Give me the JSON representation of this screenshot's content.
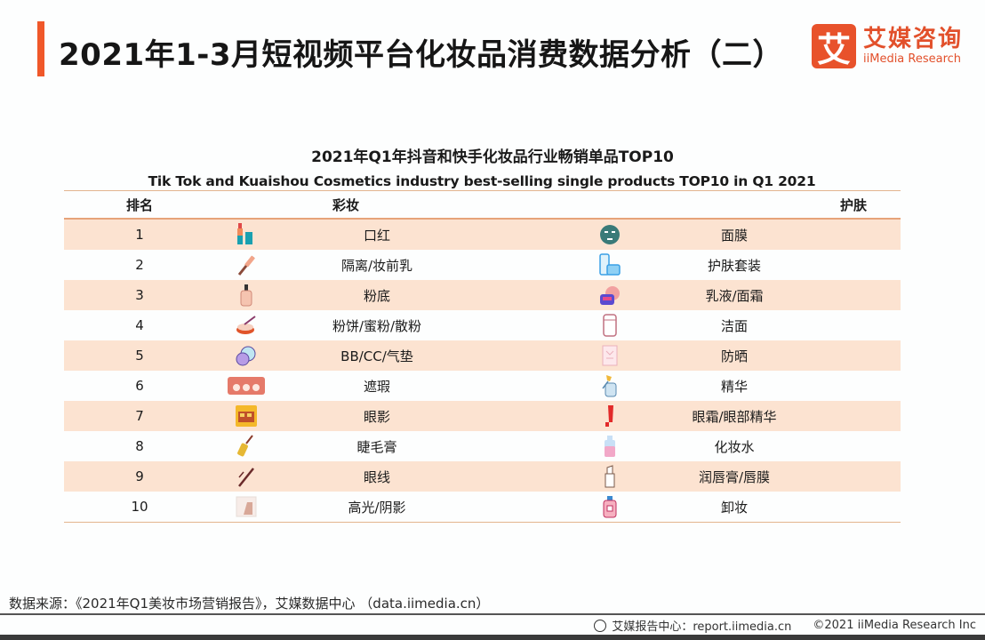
{
  "header": {
    "title": "2021年1-3月短视频平台化妆品消费数据分析（二）",
    "accent_color": "#f0582a",
    "logo": {
      "mark": "艾",
      "cn": "艾媒咨询",
      "en": "iiMedia Research"
    }
  },
  "table": {
    "title_cn": "2021年Q1年抖音和快手化妆品行业畅销单品TOP10",
    "title_en": "Tik Tok and Kuaishou Cosmetics industry best-selling single products TOP10 in Q1 2021",
    "columns": {
      "rank": "排名",
      "makeup": "彩妆",
      "skincare": "护肤"
    },
    "rows": [
      {
        "rank": "1",
        "makeup": "口红",
        "makeup_icon": "lipstick-icon",
        "skincare": "面膜",
        "skincare_icon": "face-mask-icon"
      },
      {
        "rank": "2",
        "makeup": "隔离/妆前乳",
        "makeup_icon": "primer-tube-icon",
        "skincare": "护肤套装",
        "skincare_icon": "skincare-set-icon"
      },
      {
        "rank": "3",
        "makeup": "粉底",
        "makeup_icon": "foundation-bottle-icon",
        "skincare": "乳液/面霜",
        "skincare_icon": "cream-jar-icon"
      },
      {
        "rank": "4",
        "makeup": "粉饼/蜜粉/散粉",
        "makeup_icon": "powder-compact-icon",
        "skincare": "洁面",
        "skincare_icon": "cleanser-tube-icon"
      },
      {
        "rank": "5",
        "makeup": "BB/CC/气垫",
        "makeup_icon": "cushion-compact-icon",
        "skincare": "防晒",
        "skincare_icon": "sunscreen-icon"
      },
      {
        "rank": "6",
        "makeup": "遮瑕",
        "makeup_icon": "concealer-palette-icon",
        "skincare": "精华",
        "skincare_icon": "serum-dropper-icon"
      },
      {
        "rank": "7",
        "makeup": "眼影",
        "makeup_icon": "eyeshadow-palette-icon",
        "skincare": "眼霜/眼部精华",
        "skincare_icon": "eye-cream-tube-icon"
      },
      {
        "rank": "8",
        "makeup": "睫毛膏",
        "makeup_icon": "mascara-icon",
        "skincare": "化妆水",
        "skincare_icon": "toner-bottle-icon"
      },
      {
        "rank": "9",
        "makeup": "眼线",
        "makeup_icon": "eyeliner-icon",
        "skincare": "润唇膏/唇膜",
        "skincare_icon": "lip-balm-icon"
      },
      {
        "rank": "10",
        "makeup": "高光/阴影",
        "makeup_icon": "highlighter-icon",
        "skincare": "卸妆",
        "skincare_icon": "makeup-remover-icon"
      }
    ],
    "stripe_color": "#fce3d1",
    "border_color": "#e6a37a"
  },
  "footer": {
    "source": "数据来源：《2021年Q1美妆市场营销报告》，艾媒数据中心 （data.iimedia.cn）",
    "report_center": "艾媒报告中心：report.iimedia.cn",
    "copyright": "©2021  iiMedia Research  Inc"
  }
}
